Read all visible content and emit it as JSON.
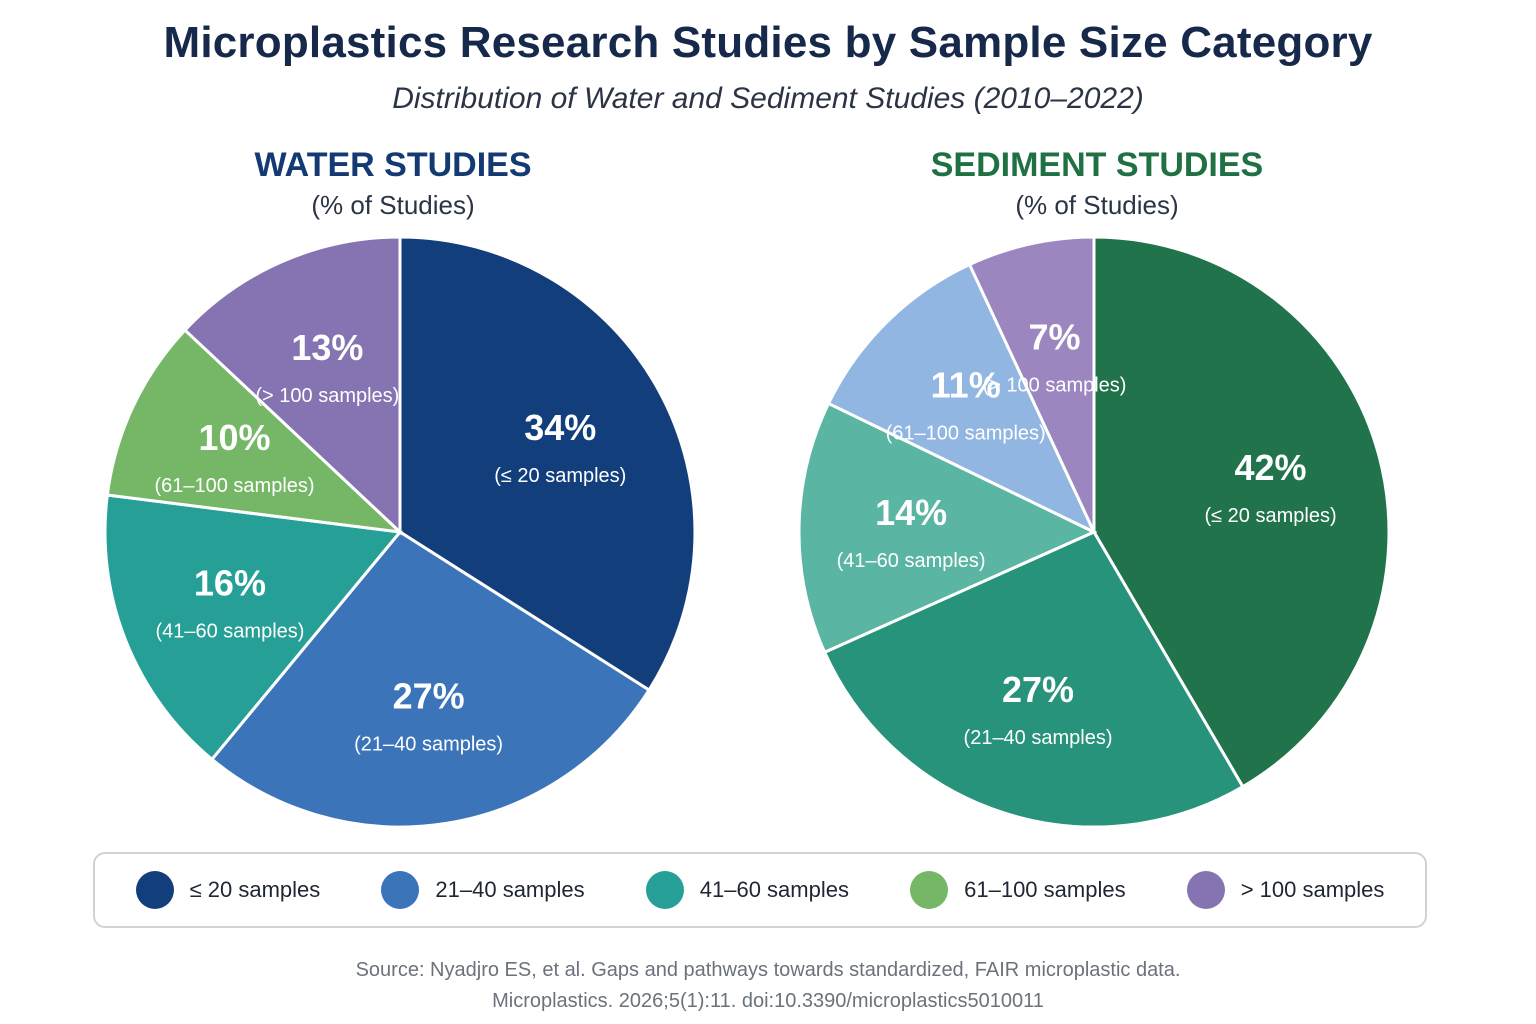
{
  "title": "Microplastics Research Studies by Sample Size Category",
  "subtitle": "Distribution of Water and Sediment Studies (2010–2022)",
  "colors": {
    "water": [
      "#133e7c",
      "#3b74b9",
      "#26a096",
      "#76b767",
      "#8574b1"
    ],
    "sediment": [
      "#20734a",
      "#27937a",
      "#5ab5a3",
      "#92b6e2",
      "#9b86c0"
    ]
  },
  "chart_data": [
    {
      "type": "pie",
      "title": "WATER STUDIES",
      "unit_label": "(% of Studies)",
      "categories": [
        "(≤ 20 samples)",
        "(21–40 samples)",
        "(41–60 samples)",
        "(61–100 samples)",
        "(> 100 samples)"
      ],
      "values": [
        34,
        27,
        16,
        10,
        13
      ],
      "value_labels": [
        "34%",
        "27%",
        "16%",
        "10%",
        "13%"
      ]
    },
    {
      "type": "pie",
      "title": "SEDIMENT STUDIES",
      "unit_label": "(% of Studies)",
      "categories": [
        "(≤ 20 samples)",
        "(21–40 samples)",
        "(41–60 samples)",
        "(61–100 samples)",
        "(> 100 samples)"
      ],
      "values": [
        42,
        27,
        14,
        11,
        7
      ],
      "value_labels": [
        "42%",
        "27%",
        "14%",
        "11%",
        "7%"
      ]
    }
  ],
  "legend": {
    "placement": "bottom",
    "items": [
      "≤ 20 samples",
      "21–40 samples",
      "41–60 samples",
      "61–100 samples",
      "> 100 samples"
    ]
  },
  "source": {
    "line1": "Source: Nyadjro ES, et al. Gaps and pathways towards standardized, FAIR microplastic data.",
    "line2": "Microplastics. 2026;5(1):11. doi:10.3390/microplastics5010011"
  }
}
